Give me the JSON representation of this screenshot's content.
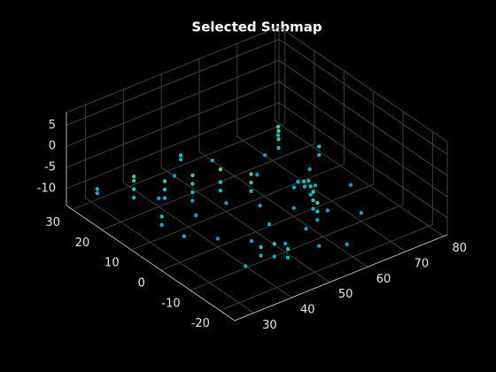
{
  "chart_data": {
    "type": "scatter3",
    "title": "Selected Submap",
    "xlim": [
      25,
      81
    ],
    "xticks": [
      30,
      40,
      50,
      60,
      70,
      80
    ],
    "ylim": [
      -25,
      32
    ],
    "yticks": [
      -20,
      -10,
      0,
      10,
      20,
      30
    ],
    "zlim": [
      -14,
      8
    ],
    "zticks": [
      -10,
      -5,
      0,
      5
    ],
    "grid": true,
    "colormap": [
      "#0d8fd0",
      "#12bec0",
      "#4cc78a",
      "#b8d43a"
    ],
    "clim": [
      -13,
      -3
    ],
    "x": [
      40,
      45,
      50,
      55,
      60,
      65,
      70,
      45,
      50,
      55,
      60,
      40,
      35,
      38,
      62,
      68,
      72,
      58,
      48,
      52,
      66,
      42,
      75,
      57,
      35,
      35,
      35,
      35,
      40,
      40,
      40,
      45,
      45,
      45,
      50,
      50,
      50,
      55,
      55,
      55,
      64,
      65,
      66,
      67,
      68,
      65,
      66,
      60,
      60,
      60,
      62,
      62,
      62,
      70,
      70,
      70,
      73,
      73,
      42,
      42,
      44,
      44,
      46,
      46,
      33,
      33,
      30,
      30,
      52,
      52,
      76,
      76
    ],
    "y": [
      20,
      15,
      10,
      5,
      0,
      -5,
      -10,
      -5,
      -10,
      -15,
      -18,
      0,
      5,
      -12,
      15,
      20,
      10,
      25,
      25,
      -2,
      2,
      10,
      0,
      -8,
      22,
      22,
      22,
      22,
      18,
      18,
      18,
      15,
      15,
      15,
      12,
      12,
      12,
      8,
      8,
      8,
      5,
      5,
      4,
      4,
      3,
      3,
      2,
      -8,
      -8,
      -8,
      -4,
      -4,
      -4,
      18,
      18,
      18,
      22,
      22,
      -12,
      -12,
      -14,
      -14,
      -16,
      -16,
      10,
      10,
      28,
      28,
      28,
      28,
      12,
      12
    ],
    "z": [
      -12,
      -12,
      -12,
      -12,
      -12,
      -12,
      -12,
      -12,
      -12,
      -12,
      -12,
      -12,
      -12,
      -12,
      -12,
      -12,
      -12,
      -12,
      -12,
      -12,
      -12,
      -12,
      -12,
      -12,
      -11,
      -9,
      -7,
      -6,
      -11,
      -9,
      -7,
      -10,
      -8,
      -6,
      -10,
      -8,
      -5,
      -10,
      -8,
      -6,
      -11,
      -10,
      -11,
      -10,
      -11,
      -9,
      -10,
      -11,
      -9,
      -7,
      -11,
      -9,
      -7,
      -10,
      -8,
      -6,
      -10,
      -8,
      -11,
      -9,
      -11,
      -8,
      -11,
      -9,
      -11,
      -9,
      -11,
      -10,
      -11,
      -10,
      -11,
      -9
    ]
  }
}
